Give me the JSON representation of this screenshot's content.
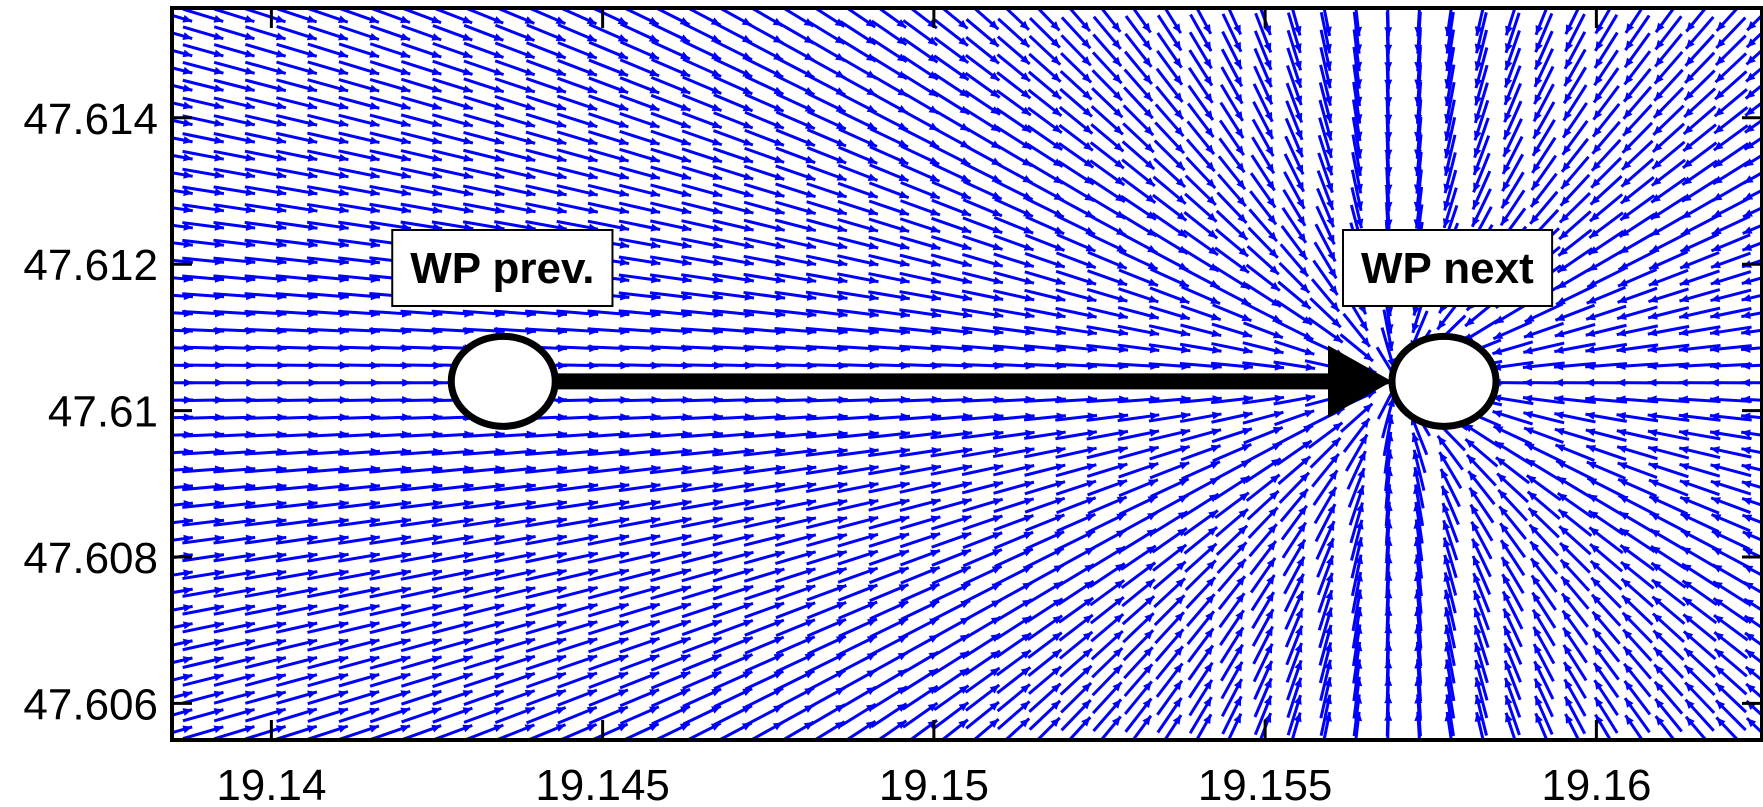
{
  "chart_data": {
    "type": "quiver",
    "xlim": [
      19.1385,
      19.1625
    ],
    "ylim": [
      47.6055,
      47.6155
    ],
    "x_ticks": [
      19.14,
      19.145,
      19.15,
      19.155,
      19.16
    ],
    "x_tick_labels": [
      "19.14",
      "19.145",
      "19.15",
      "19.155",
      "19.16"
    ],
    "y_ticks": [
      47.606,
      47.608,
      47.61,
      47.612,
      47.614
    ],
    "y_tick_labels": [
      "47.606",
      "47.608",
      "47.61",
      "47.612",
      "47.614"
    ],
    "grid": false,
    "vector_field": {
      "color": "#0000ff",
      "x_start": 19.1385,
      "x_end": 19.1625,
      "x_count": 52,
      "y_start": 47.6154,
      "y_end": 47.6056,
      "y_count": 42,
      "convergence_point": {
        "x": 19.157,
        "y": 47.6104
      }
    },
    "waypoints": [
      {
        "label": "WP prev.",
        "x": 19.1435,
        "y": 47.6104
      },
      {
        "label": "WP next",
        "x": 19.1577,
        "y": 47.6104
      }
    ],
    "path_arrow": {
      "from": "WP prev.",
      "to": "WP next",
      "color": "#000000"
    }
  }
}
